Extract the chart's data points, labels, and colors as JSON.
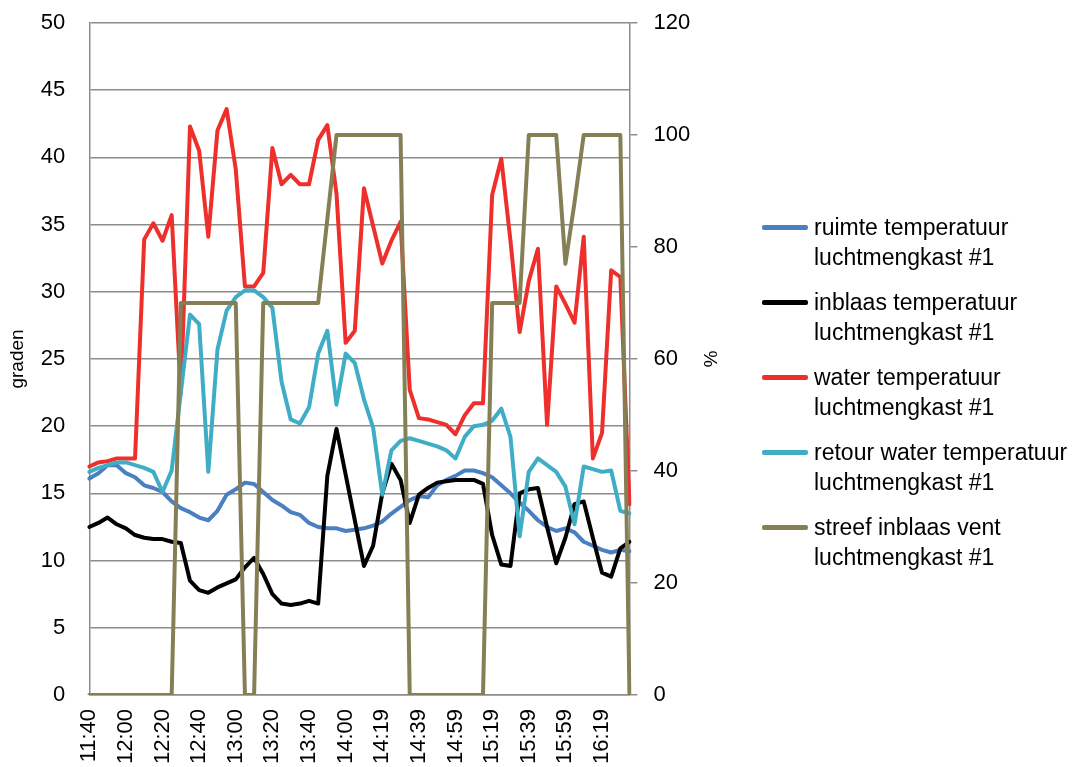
{
  "chart_data": {
    "type": "line",
    "ylabel": "graden",
    "y2label": "%",
    "categories": [
      "11:40",
      null,
      null,
      null,
      "12:00",
      null,
      null,
      null,
      "12:20",
      null,
      null,
      null,
      "12:40",
      null,
      null,
      null,
      "13:00",
      null,
      null,
      null,
      "13:20",
      null,
      null,
      null,
      "13:40",
      null,
      null,
      null,
      "14:00",
      null,
      null,
      null,
      "14:19",
      null,
      null,
      null,
      "14:39",
      null,
      null,
      null,
      "14:59",
      null,
      null,
      null,
      "15:19",
      null,
      null,
      null,
      "15:39",
      null,
      null,
      null,
      "15:59",
      null,
      null,
      null,
      "16:19",
      null,
      null,
      null
    ],
    "series": [
      {
        "name": "ruimte temperatuur luchtmengkast #1",
        "color": "#4a7fc1",
        "values": [
          16.1,
          16.5,
          17.1,
          17.1,
          16.5,
          16.2,
          15.6,
          15.4,
          15.1,
          14.4,
          13.9,
          13.6,
          13.2,
          13.0,
          13.7,
          14.9,
          15.3,
          15.8,
          15.7,
          15.1,
          14.5,
          14.1,
          13.6,
          13.4,
          12.8,
          12.5,
          12.4,
          12.4,
          12.2,
          12.3,
          12.4,
          12.6,
          12.9,
          13.5,
          14.0,
          14.5,
          14.8,
          14.7,
          15.6,
          16.0,
          16.3,
          16.7,
          16.7,
          16.5,
          16.2,
          15.6,
          15.0,
          14.3,
          13.7,
          13.0,
          12.5,
          12.2,
          12.4,
          12.1,
          11.4,
          11.1,
          10.8,
          10.6,
          10.8,
          10.7
        ]
      },
      {
        "name": "inblaas temperatuur luchtmengkast #1",
        "color": "#000000",
        "values": [
          12.5,
          12.8,
          13.2,
          12.7,
          12.4,
          11.9,
          11.7,
          11.6,
          11.6,
          11.4,
          11.3,
          8.5,
          7.8,
          7.6,
          8.0,
          8.3,
          8.6,
          9.5,
          10.2,
          9.0,
          7.5,
          6.8,
          6.7,
          6.8,
          7.0,
          6.8,
          16.3,
          19.8,
          16.4,
          13.0,
          9.6,
          11.1,
          15.0,
          17.2,
          16.0,
          12.8,
          14.9,
          15.4,
          15.8,
          15.9,
          16.0,
          16.0,
          16.0,
          15.7,
          11.9,
          9.7,
          9.6,
          15.0,
          15.3,
          15.4,
          12.5,
          9.8,
          11.7,
          14.2,
          14.4,
          11.7,
          9.1,
          8.8,
          10.9,
          11.4
        ]
      },
      {
        "name": "water temperatuur luchtmengkast #1",
        "color": "#ee2f2b",
        "values": [
          17.0,
          17.3,
          17.4,
          17.6,
          17.6,
          17.6,
          33.9,
          35.1,
          33.8,
          35.7,
          22.4,
          42.3,
          40.5,
          34.1,
          42.0,
          43.6,
          39.1,
          30.4,
          30.4,
          31.4,
          40.7,
          38.0,
          38.7,
          38.0,
          38.0,
          41.3,
          42.4,
          37.3,
          26.2,
          27.1,
          37.7,
          34.9,
          32.1,
          33.8,
          35.2,
          22.7,
          20.6,
          20.5,
          20.3,
          20.1,
          19.4,
          20.8,
          21.7,
          21.7,
          37.2,
          39.9,
          33.8,
          27.0,
          30.8,
          33.2,
          20.1,
          30.4,
          29.1,
          27.7,
          34.1,
          17.6,
          19.5,
          31.6,
          31.1,
          14.2
        ]
      },
      {
        "name": "retour water temperatuur luchtmengkast #1",
        "color": "#40adc7",
        "values": [
          16.6,
          16.9,
          17.1,
          17.3,
          17.3,
          17.1,
          16.9,
          16.6,
          15.1,
          16.7,
          22.5,
          28.3,
          27.6,
          16.6,
          25.7,
          28.6,
          29.6,
          30.1,
          30.1,
          29.6,
          28.8,
          23.3,
          20.5,
          20.2,
          21.4,
          25.4,
          27.1,
          21.6,
          25.4,
          24.7,
          22.0,
          19.9,
          14.9,
          18.2,
          18.9,
          19.1,
          18.9,
          18.7,
          18.5,
          18.2,
          17.6,
          19.2,
          20.0,
          20.1,
          20.4,
          21.3,
          19.2,
          11.8,
          16.6,
          17.6,
          17.1,
          16.6,
          15.5,
          12.7,
          17.0,
          16.8,
          16.6,
          16.7,
          13.7,
          13.5
        ]
      },
      {
        "name": "streef inblaas vent luchtmengkast #1",
        "color": "#857f56",
        "axis": "y2",
        "values": [
          0,
          0,
          0,
          0,
          0,
          0,
          0,
          0,
          0,
          0,
          70,
          70,
          70,
          70,
          70,
          70,
          70,
          0,
          0,
          70,
          70,
          70,
          70,
          70,
          70,
          70,
          85,
          100,
          100,
          100,
          100,
          100,
          100,
          100,
          100,
          0,
          0,
          0,
          0,
          0,
          0,
          0,
          0,
          0,
          70,
          70,
          70,
          70,
          100,
          100,
          100,
          100,
          77,
          88,
          100,
          100,
          100,
          100,
          100,
          0
        ]
      }
    ],
    "ylim": [
      0,
      50
    ],
    "yticks": [
      0,
      5,
      10,
      15,
      20,
      25,
      30,
      35,
      40,
      45,
      50
    ],
    "y2lim": [
      0,
      120
    ],
    "y2ticks": [
      0,
      20,
      40,
      60,
      80,
      100,
      120
    ],
    "grid": "y",
    "legend": "right",
    "line_style": "solid"
  }
}
